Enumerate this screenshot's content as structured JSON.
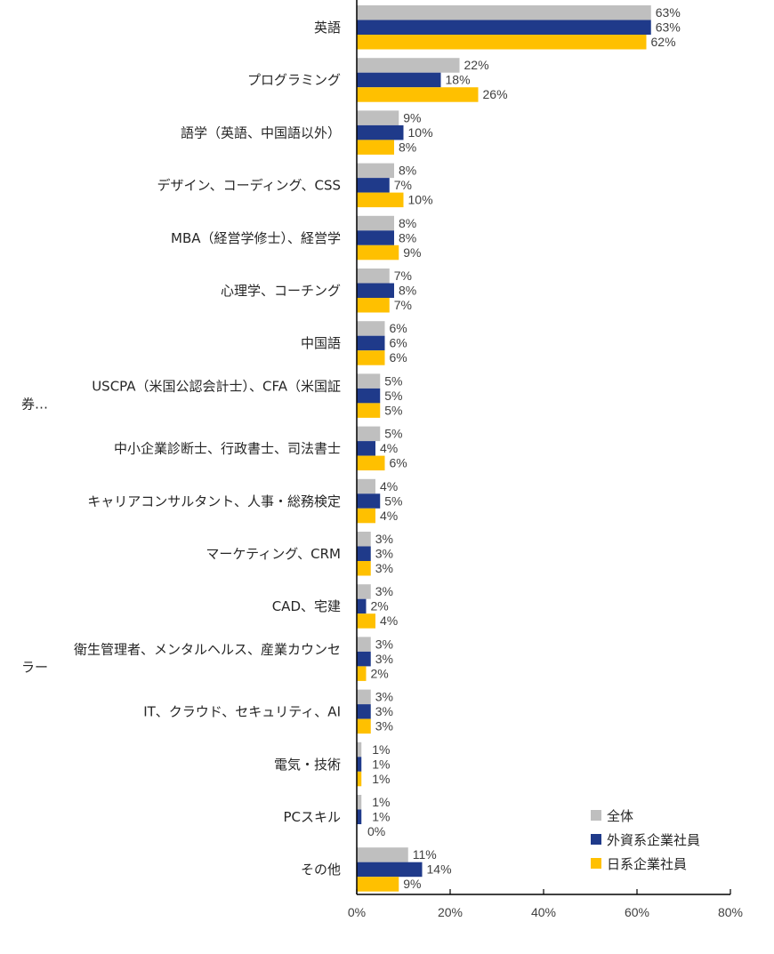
{
  "chart_data": {
    "type": "bar",
    "orientation": "horizontal",
    "categories": [
      "英語",
      "プログラミング",
      "語学（英語、中国語以外）",
      "デザイン、コーディング、CSS",
      "MBA（経営学修士）、経営学",
      "心理学、コーチング",
      "中国語",
      "USCPA（米国公認会計士）、CFA（米国証券…",
      "中小企業診断士、行政書士、司法書士",
      "キャリアコンサルタント、人事・総務検定",
      "マーケティング、CRM",
      "CAD、宅建",
      "衛生管理者、メンタルヘルス、産業カウンセラー",
      "IT、クラウド、セキュリティ、AI",
      "電気・技術",
      "PCスキル",
      "その他"
    ],
    "series": [
      {
        "name": "全体",
        "color": "#BFBFBF",
        "values": [
          63,
          22,
          9,
          8,
          8,
          7,
          6,
          5,
          5,
          4,
          3,
          3,
          3,
          3,
          1,
          1,
          11
        ]
      },
      {
        "name": "外資系企業社員",
        "color": "#1F3A8A",
        "values": [
          63,
          18,
          10,
          7,
          8,
          8,
          6,
          5,
          4,
          5,
          3,
          2,
          3,
          3,
          1,
          1,
          14
        ]
      },
      {
        "name": "日系企業社員",
        "color": "#FFC000",
        "values": [
          62,
          26,
          8,
          10,
          9,
          7,
          6,
          5,
          6,
          4,
          3,
          4,
          2,
          3,
          1,
          0,
          9
        ]
      }
    ],
    "xlim": [
      0,
      80
    ],
    "xticks": [
      "0%",
      "20%",
      "40%",
      "60%",
      "80%"
    ],
    "xtick_values": [
      0,
      20,
      40,
      60,
      80
    ],
    "value_suffix": "%",
    "title": "",
    "xlabel": "",
    "ylabel": "",
    "legend": "bottom-right",
    "grid": false
  }
}
